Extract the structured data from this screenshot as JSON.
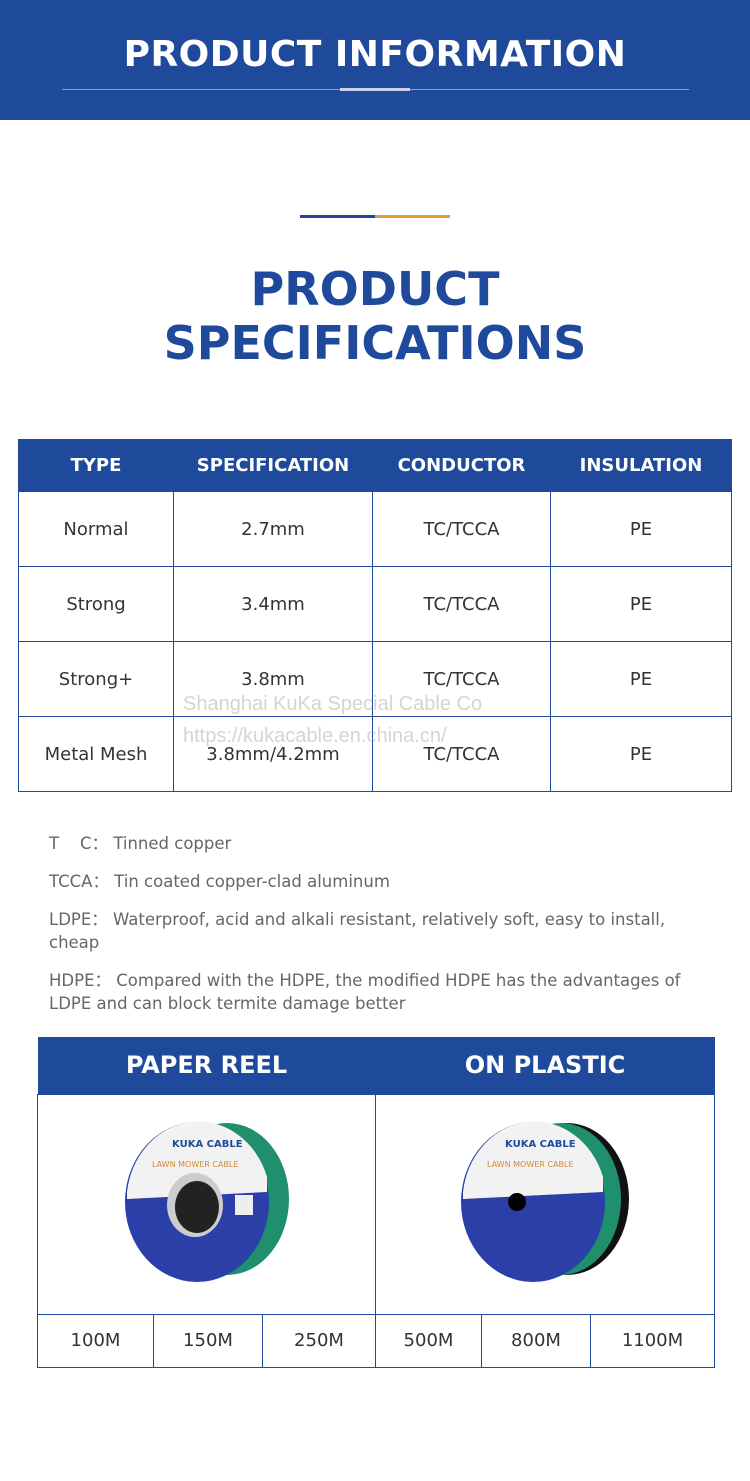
{
  "banner": {
    "title": "PRODUCT INFORMATION"
  },
  "section": {
    "title_line1": "PRODUCT",
    "title_line2": "SPECIFICATIONS"
  },
  "colors": {
    "primary": "#1f4a9c",
    "accent": "#e69a3a"
  },
  "spec_table": {
    "headers": [
      "TYPE",
      "SPECIFICATION",
      "CONDUCTOR",
      "INSULATION"
    ],
    "rows": [
      [
        "Normal",
        "2.7mm",
        "TC/TCCA",
        "PE"
      ],
      [
        "Strong",
        "3.4mm",
        "TC/TCCA",
        "PE"
      ],
      [
        "Strong+",
        "3.8mm",
        "TC/TCCA",
        "PE"
      ],
      [
        "Metal Mesh",
        "3.8mm/4.2mm",
        "TC/TCCA",
        "PE"
      ]
    ]
  },
  "watermark": {
    "line1": "Shanghai KuKa Special Cable Co",
    "line2": "https://kukacable.en.china.cn/"
  },
  "notes": [
    "T    C： Tinned copper",
    "TCCA： Tin coated copper-clad aluminum",
    "LDPE： Waterproof, acid and alkali resistant, relatively soft, easy to install, cheap",
    "HDPE： Compared with the HDPE, the modified HDPE has the advantages of LDPE and can block termite damage better"
  ],
  "packaging": {
    "headers": [
      "PAPER REEL",
      "ON PLASTIC"
    ],
    "reel_brand": "KUKA CABLE",
    "reel_product": "LAWN MOWER CABLE",
    "lengths": [
      "100M",
      "150M",
      "250M",
      "500M",
      "800M",
      "1100M"
    ]
  }
}
